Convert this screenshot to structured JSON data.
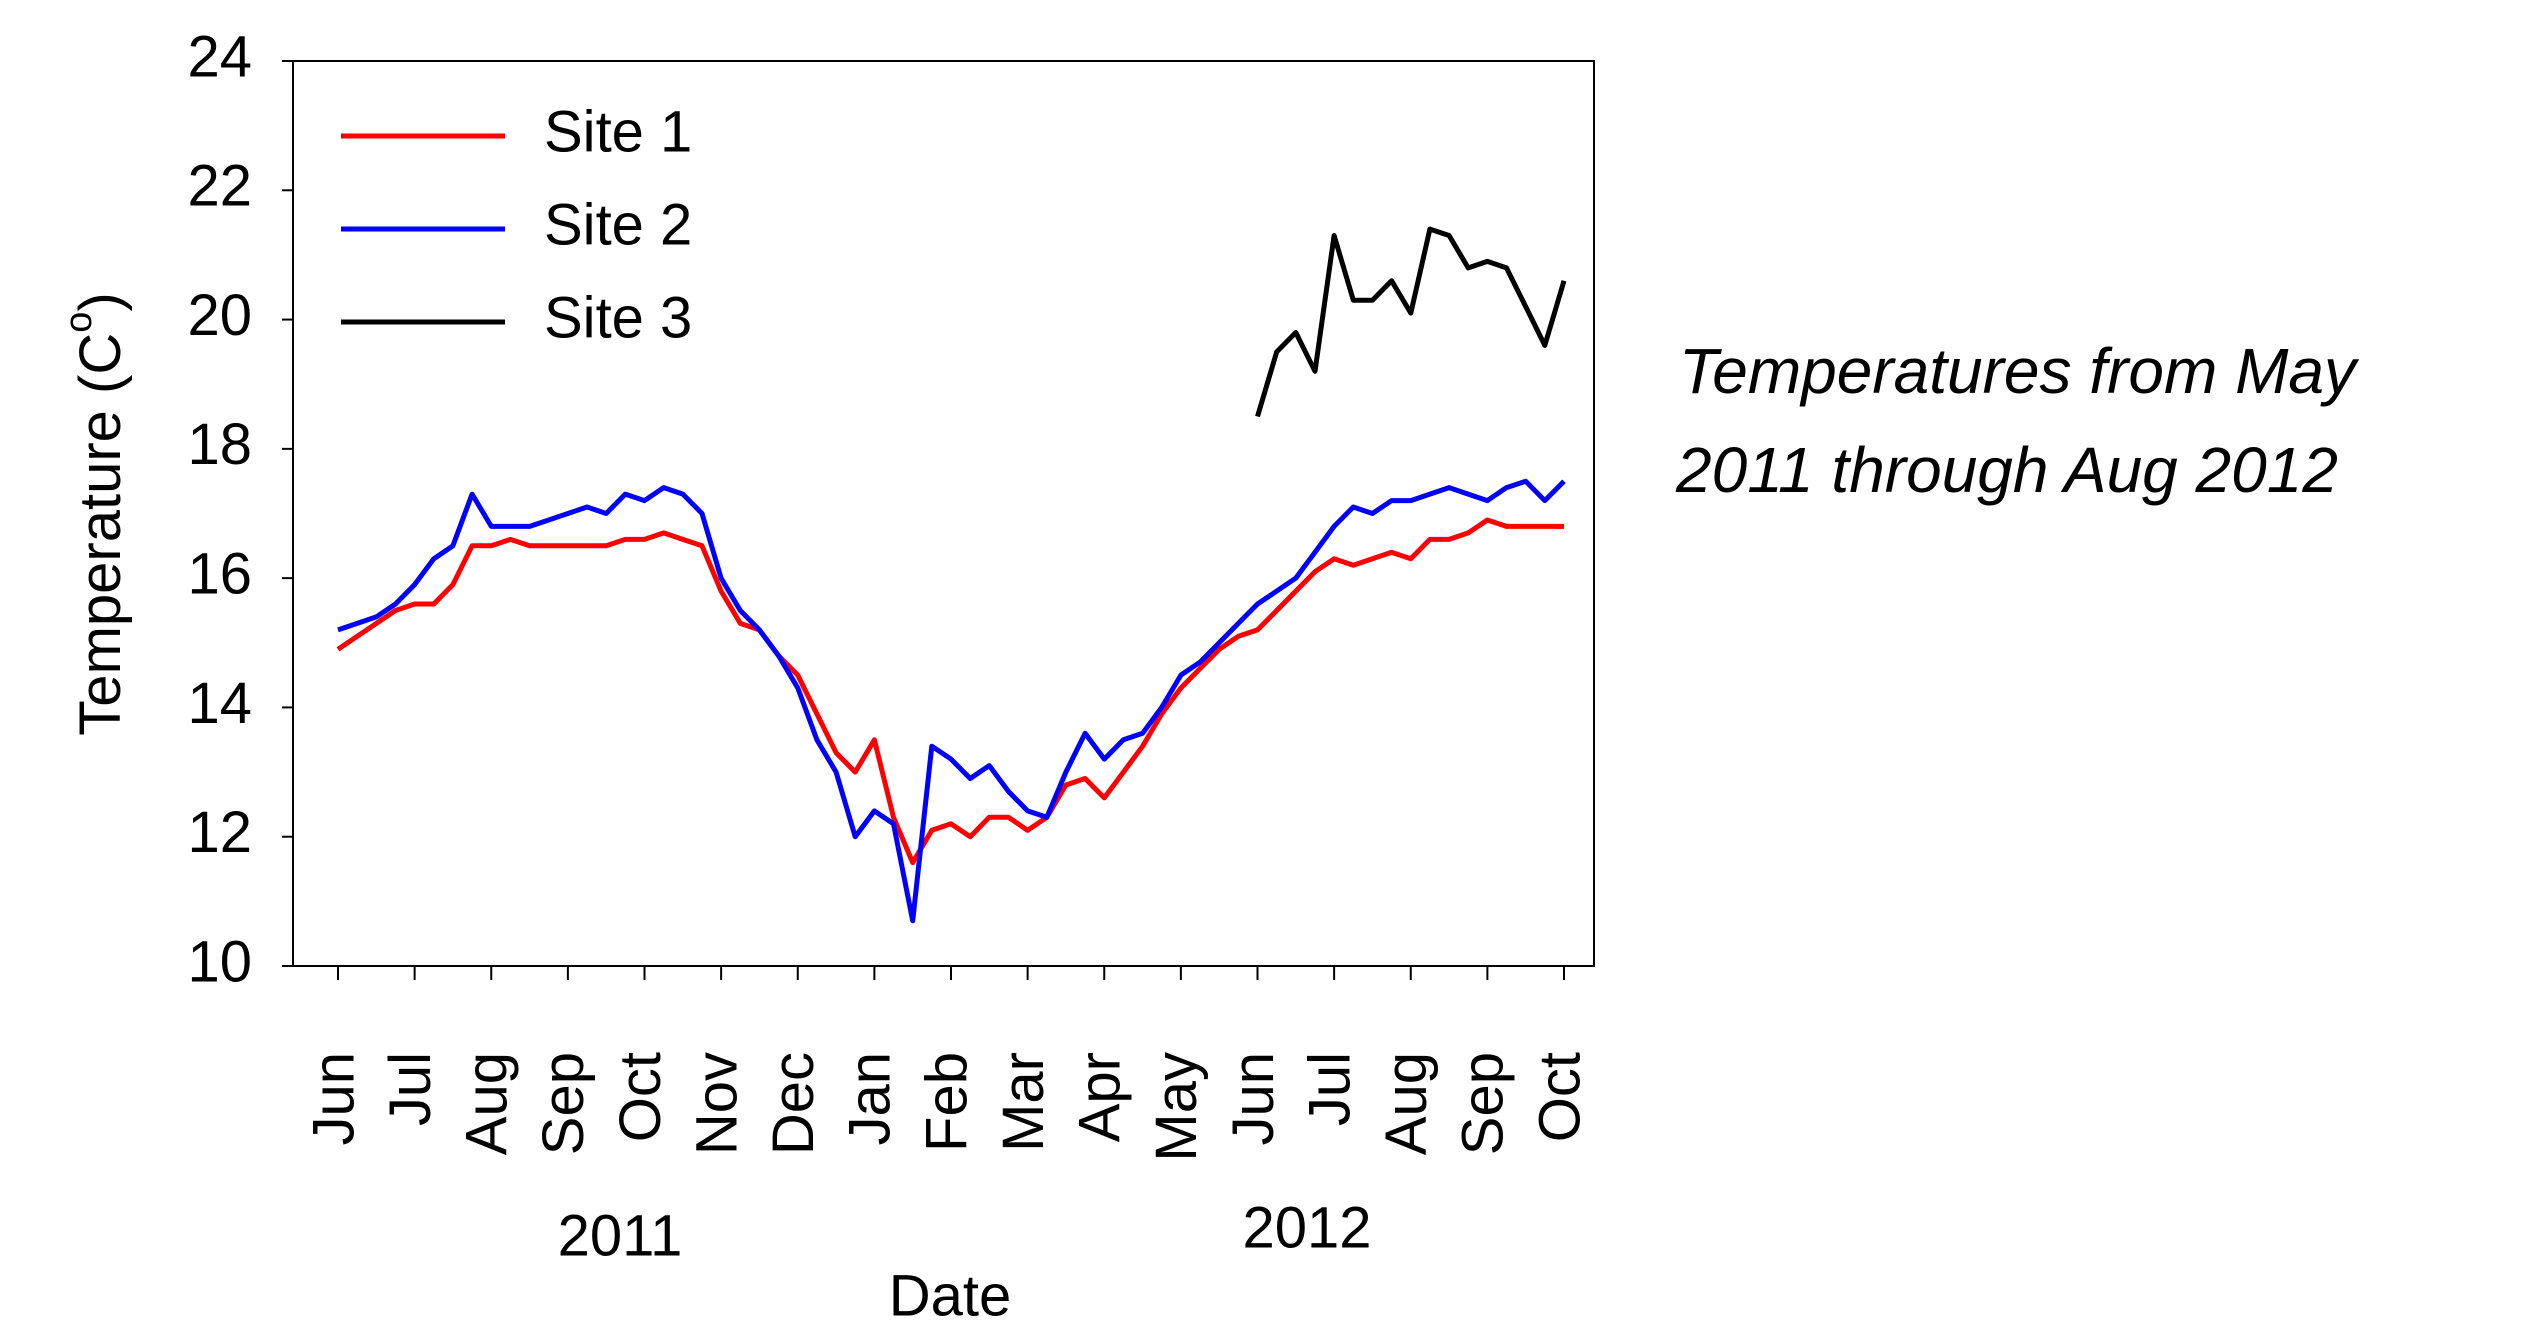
{
  "chart_data": {
    "type": "line",
    "y_label": {
      "text": "Temperature (C",
      "superscript": "o",
      "close": ")"
    },
    "x_label": "Date",
    "x_groups": [
      "2011",
      "2012"
    ],
    "annotation": [
      "Temperatures from May",
      "2011 through Aug 2012"
    ],
    "categories": [
      "Jun",
      null,
      null,
      null,
      "Jul",
      null,
      null,
      null,
      "Aug",
      null,
      null,
      null,
      "Sep",
      null,
      null,
      null,
      "Oct",
      null,
      null,
      null,
      "Nov",
      null,
      null,
      null,
      "Dec",
      null,
      null,
      null,
      "Jan",
      null,
      null,
      null,
      "Feb",
      null,
      null,
      null,
      "Mar",
      null,
      null,
      null,
      "Apr",
      null,
      null,
      null,
      "May",
      null,
      null,
      null,
      "Jun",
      null,
      null,
      null,
      "Jul",
      null,
      null,
      null,
      "Aug",
      null,
      null,
      null,
      "Sep",
      null,
      null,
      null,
      "Oct"
    ],
    "series": [
      {
        "name": "Site 1",
        "color": "#ff0000",
        "values": [
          14.9,
          15.1,
          15.3,
          15.5,
          15.6,
          15.6,
          15.9,
          16.5,
          16.5,
          16.6,
          16.5,
          16.5,
          16.5,
          16.5,
          16.5,
          16.6,
          16.6,
          16.7,
          16.6,
          16.5,
          15.8,
          15.3,
          15.2,
          14.8,
          14.5,
          13.9,
          13.3,
          13.0,
          13.5,
          12.3,
          11.6,
          12.1,
          12.2,
          12.0,
          12.3,
          12.3,
          12.1,
          12.3,
          12.8,
          12.9,
          12.6,
          13.0,
          13.4,
          13.9,
          14.3,
          14.6,
          14.9,
          15.1,
          15.2,
          15.5,
          15.8,
          16.1,
          16.3,
          16.2,
          16.3,
          16.4,
          16.3,
          16.6,
          16.6,
          16.7,
          16.9,
          16.8,
          16.8,
          16.8,
          16.8
        ]
      },
      {
        "name": "Site 2",
        "color": "#0000ff",
        "values": [
          15.2,
          15.3,
          15.4,
          15.6,
          15.9,
          16.3,
          16.5,
          17.3,
          16.8,
          16.8,
          16.8,
          16.9,
          17.0,
          17.1,
          17.0,
          17.3,
          17.2,
          17.4,
          17.3,
          17.0,
          16.0,
          15.5,
          15.2,
          14.8,
          14.3,
          13.5,
          13.0,
          12.0,
          12.4,
          12.2,
          10.7,
          13.4,
          13.2,
          12.9,
          13.1,
          12.7,
          12.4,
          12.3,
          13.0,
          13.6,
          13.2,
          13.5,
          13.6,
          14.0,
          14.5,
          14.7,
          15.0,
          15.3,
          15.6,
          15.8,
          16.0,
          16.4,
          16.8,
          17.1,
          17.0,
          17.2,
          17.2,
          17.3,
          17.4,
          17.3,
          17.2,
          17.4,
          17.5,
          17.2,
          17.5
        ]
      },
      {
        "name": "Site 3",
        "color": "#000000",
        "values": [
          null,
          null,
          null,
          null,
          null,
          null,
          null,
          null,
          null,
          null,
          null,
          null,
          null,
          null,
          null,
          null,
          null,
          null,
          null,
          null,
          null,
          null,
          null,
          null,
          null,
          null,
          null,
          null,
          null,
          null,
          null,
          null,
          null,
          null,
          null,
          null,
          null,
          null,
          null,
          null,
          null,
          null,
          null,
          null,
          null,
          null,
          null,
          null,
          18.5,
          19.5,
          19.8,
          19.2,
          21.3,
          20.3,
          20.3,
          20.6,
          20.1,
          21.4,
          21.3,
          20.8,
          20.9,
          20.8,
          20.2,
          19.6,
          20.6
        ]
      }
    ],
    "ylim": [
      10,
      24
    ],
    "yticks": [
      10,
      12,
      14,
      16,
      18,
      20,
      22,
      24
    ],
    "legend": "upper left"
  }
}
